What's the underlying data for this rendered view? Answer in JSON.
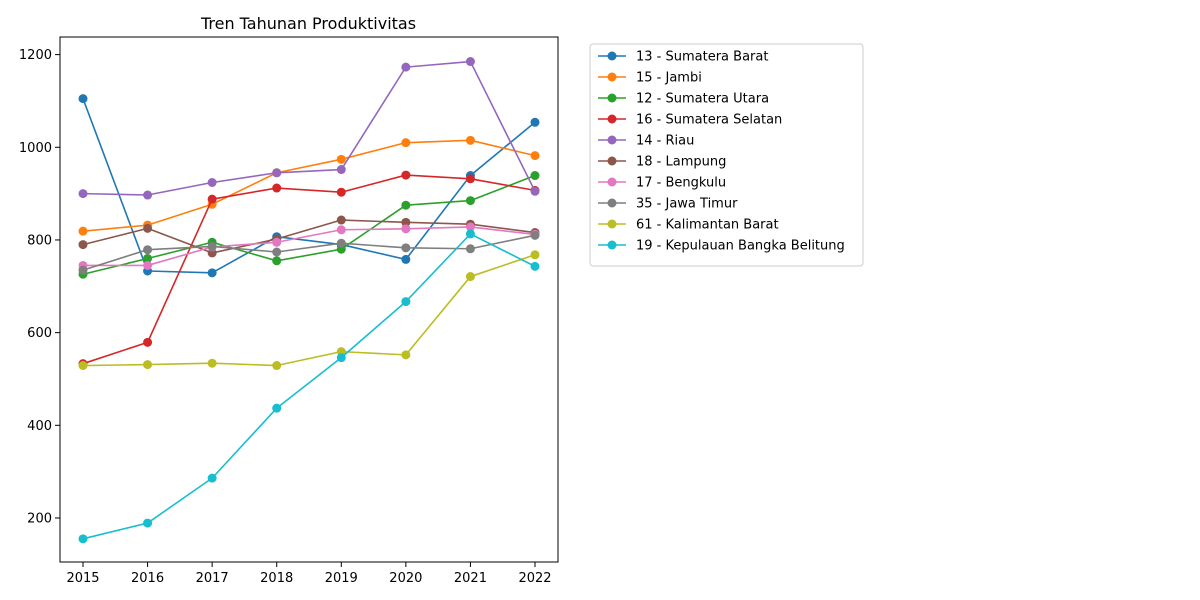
{
  "chart_data": {
    "type": "line",
    "title": "Tren Tahunan Produktivitas",
    "xlabel": "",
    "ylabel": "",
    "x": [
      "2015",
      "2016",
      "2017",
      "2018",
      "2019",
      "2020",
      "2021",
      "2022"
    ],
    "ylim": [
      105,
      1238
    ],
    "yticks": [
      200,
      400,
      600,
      800,
      1000,
      1200
    ],
    "grid": false,
    "legend_position": "outside-right",
    "series": [
      {
        "name": "13 - Sumatera Barat",
        "color": "#1f77b4",
        "values": [
          1105,
          733,
          729,
          807,
          790,
          758,
          939,
          1054
        ]
      },
      {
        "name": "15 - Jambi",
        "color": "#ff7f0e",
        "values": [
          819,
          832,
          877,
          945,
          974,
          1010,
          1015,
          982
        ]
      },
      {
        "name": "12 - Sumatera Utara",
        "color": "#2ca02c",
        "values": [
          726,
          760,
          795,
          755,
          780,
          875,
          885,
          939
        ]
      },
      {
        "name": "16 - Sumatera Selatan",
        "color": "#d62728",
        "values": [
          533,
          579,
          888,
          912,
          903,
          940,
          932,
          907
        ]
      },
      {
        "name": "14 - Riau",
        "color": "#9467bd",
        "values": [
          900,
          897,
          924,
          945,
          952,
          1173,
          1185,
          905
        ]
      },
      {
        "name": "18 - Lampung",
        "color": "#8c564b",
        "values": [
          790,
          825,
          772,
          802,
          843,
          838,
          834,
          816
        ]
      },
      {
        "name": "17 - Bengkulu",
        "color": "#e377c2",
        "values": [
          745,
          745,
          785,
          795,
          822,
          824,
          828,
          812
        ]
      },
      {
        "name": "35 - Jawa Timur",
        "color": "#7f7f7f",
        "values": [
          735,
          779,
          786,
          774,
          793,
          783,
          781,
          810
        ]
      },
      {
        "name": "61 - Kalimantan Barat",
        "color": "#bcbd22",
        "values": [
          529,
          531,
          534,
          529,
          559,
          552,
          721,
          768
        ]
      },
      {
        "name": "19 - Kepulauan Bangka Belitung",
        "color": "#17becf",
        "values": [
          155,
          189,
          286,
          437,
          546,
          667,
          813,
          743
        ]
      }
    ]
  }
}
